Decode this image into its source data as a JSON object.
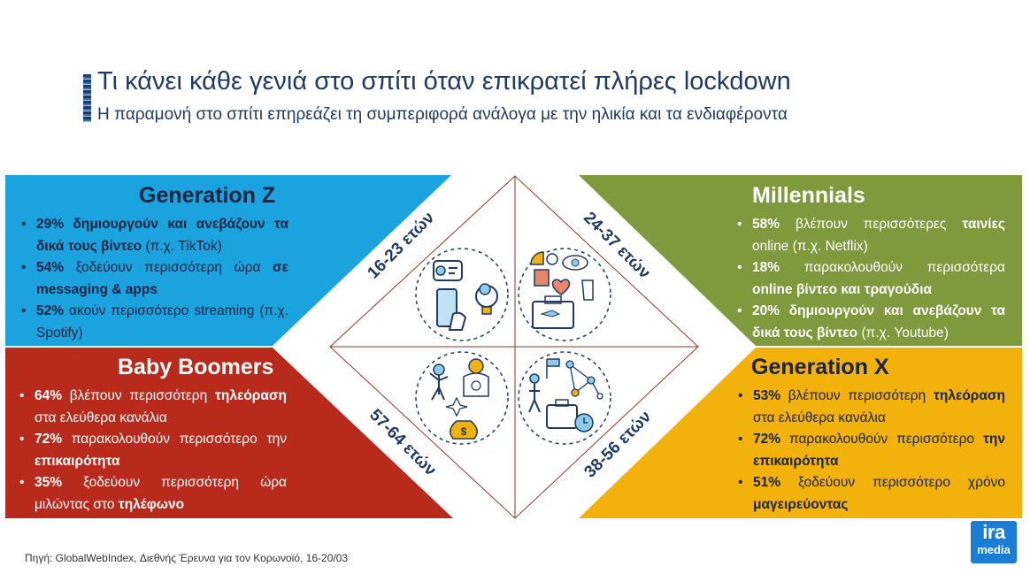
{
  "header": {
    "title": "Τι κάνει κάθε γενιά στο σπίτι όταν επικρατεί πλήρες lockdown",
    "subtitle": "Η παραμονή στο σπίτι επηρεάζει τη συμπεριφορά ανάλογα με την ηλικία και τα ενδιαφέροντα"
  },
  "colors": {
    "genz": "#1aa3de",
    "millennials": "#7f9a3d",
    "boomers": "#b82a1b",
    "genx": "#f3b10c",
    "title": "#1f3a63"
  },
  "quadrants": {
    "genz": {
      "title": "Generation Z",
      "age": "16-23 ετών",
      "icon": "messaging-and-smartphone-icon",
      "items": [
        {
          "pct": "29%",
          "bold": "δημιουργούν και ανεβάζουν τα δικά τους βίντεο",
          "rest": " (π.χ. TikTok)"
        },
        {
          "pct": "54%",
          "rest": " ξοδεύουν περισσότερη ώρα ",
          "bold": "σε messaging & apps"
        },
        {
          "pct": "52%",
          "rest": " ακούν περισσότερο streaming (π.χ. Spotify)"
        }
      ]
    },
    "millennials": {
      "title": "Millennials",
      "age": "24-37 ετών",
      "icon": "entertainment-and-travel-icon",
      "items": [
        {
          "pct": "58%",
          "rest": " βλέπουν περισσότερες ",
          "bold": "ταινίες",
          "tail": " online (π.χ. Netflix)"
        },
        {
          "pct": "18%",
          "rest": " παρακολουθούν περισσότερα ",
          "bold": "online βίντεο και τραγούδια"
        },
        {
          "pct": "20%",
          "bold": "δημιουργούν και ανεβάζουν τα δικά τους βίντεο",
          "rest": " (π.χ. Youtube)"
        }
      ]
    },
    "boomers": {
      "title": "Baby Boomers",
      "age": "57-64 ετών",
      "icon": "family-and-money-icon",
      "items": [
        {
          "pct": "64%",
          "rest": " βλέπουν περισσότερη ",
          "bold": "τηλεόραση",
          "tail": " στα ελεύθερα κανάλια"
        },
        {
          "pct": "72%",
          "rest": " παρακολουθούν περισσότερο την ",
          "bold": "επικαιρότητα"
        },
        {
          "pct": "35%",
          "rest": " ξοδεύουν περισσότερη ώρα μιλώντας στο ",
          "bold": "τηλέφωνο"
        }
      ]
    },
    "genx": {
      "title": "Generation X",
      "age": "38-56 ετών",
      "icon": "network-and-briefcase-icon",
      "items": [
        {
          "pct": "53%",
          "rest": " βλέπουν περισσότερη ",
          "bold": "τηλεόραση",
          "tail": " στα ελεύθερα κανάλια"
        },
        {
          "pct": "72%",
          "rest": " παρακολουθούν περισσότερο ",
          "bold": "την επικαιρότητα"
        },
        {
          "pct": "51%",
          "rest": " ξοδεύουν περισσότερο χρόνο ",
          "bold": "μαγειρεύοντας"
        }
      ]
    }
  },
  "footer": {
    "source": "Πηγή:  GlobalWebIndex, Διεθνής Έρευνα για τον Κορωνοϊό, 16-20/03",
    "logo_top": "ira",
    "logo_bottom": "media"
  }
}
